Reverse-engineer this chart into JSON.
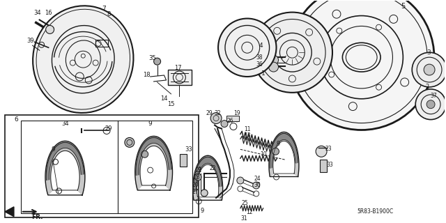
{
  "bg_color": "#ffffff",
  "line_color": "#1a1a1a",
  "diagram_code": "5R83-B1900C",
  "fig_width": 6.4,
  "fig_height": 3.2,
  "dpi": 100
}
